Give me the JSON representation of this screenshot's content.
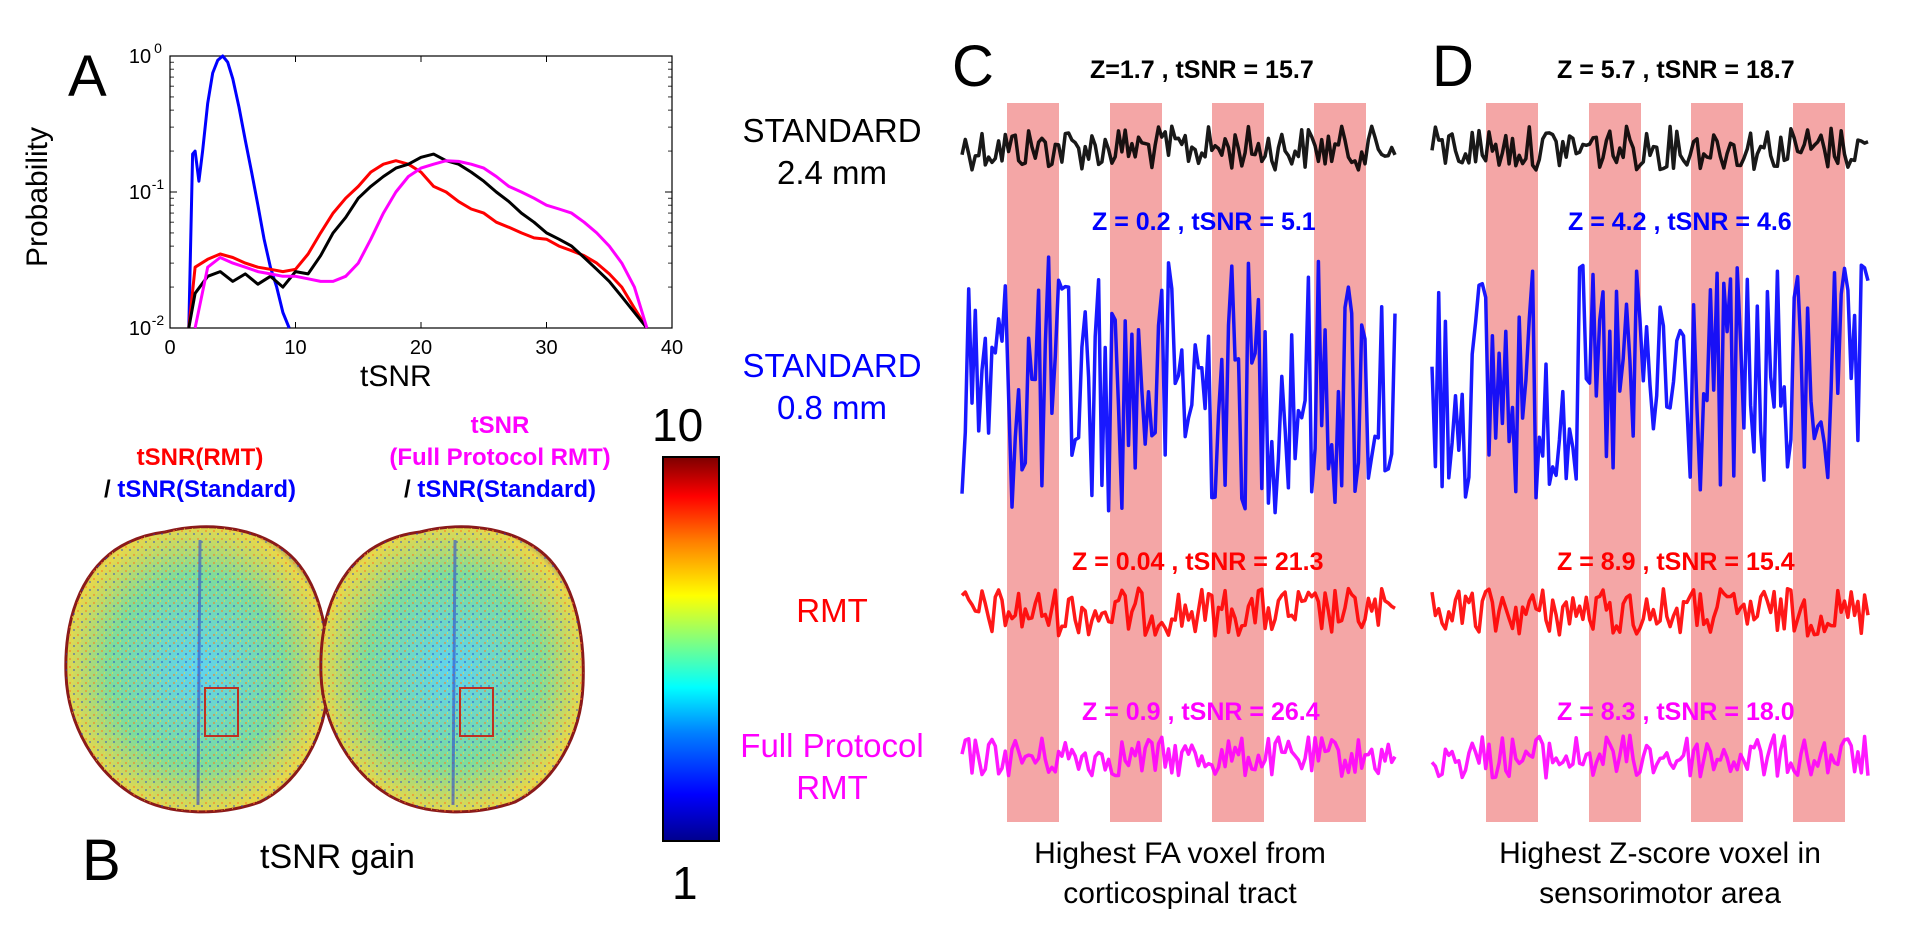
{
  "panels": {
    "A": "A",
    "B": "B",
    "C": "C",
    "D": "D"
  },
  "chart_data": {
    "type": "line",
    "xlabel": "tSNR",
    "ylabel": "Probability",
    "xlim": [
      0,
      40
    ],
    "ylim": [
      0.01,
      1
    ],
    "yscale": "log",
    "xticks": [
      "0",
      "10",
      "20",
      "30",
      "40"
    ],
    "series": [
      {
        "color": "#0000ff",
        "x": [
          1.5,
          1.8,
          2.0,
          2.3,
          2.6,
          3.0,
          3.4,
          3.8,
          4.2,
          4.6,
          5.0,
          5.5,
          6.0,
          6.5,
          7.0,
          7.5,
          8.0,
          8.5,
          9.0,
          9.5
        ],
        "values": [
          0.01,
          0.19,
          0.2,
          0.12,
          0.2,
          0.45,
          0.75,
          0.93,
          1.0,
          0.9,
          0.68,
          0.42,
          0.24,
          0.14,
          0.08,
          0.045,
          0.028,
          0.02,
          0.013,
          0.01
        ]
      },
      {
        "color": "#ff0000",
        "x": [
          1.5,
          2,
          3,
          4,
          5,
          6,
          7,
          8,
          9,
          10,
          11,
          12,
          13,
          14,
          15,
          16,
          17,
          18,
          19,
          20,
          21,
          22,
          23,
          24,
          25,
          26,
          27,
          28,
          29,
          30,
          31,
          32,
          33,
          34,
          35,
          36,
          37,
          38
        ],
        "values": [
          0.01,
          0.028,
          0.032,
          0.035,
          0.033,
          0.03,
          0.028,
          0.027,
          0.026,
          0.027,
          0.035,
          0.05,
          0.07,
          0.09,
          0.11,
          0.14,
          0.16,
          0.17,
          0.16,
          0.14,
          0.11,
          0.1,
          0.085,
          0.075,
          0.07,
          0.06,
          0.055,
          0.05,
          0.046,
          0.045,
          0.04,
          0.037,
          0.034,
          0.03,
          0.025,
          0.02,
          0.014,
          0.01
        ]
      },
      {
        "color": "#000000",
        "x": [
          1.5,
          2,
          3,
          4,
          5,
          6,
          7,
          8,
          9,
          10,
          11,
          12,
          13,
          14,
          15,
          16,
          17,
          18,
          19,
          20,
          21,
          22,
          23,
          24,
          25,
          26,
          27,
          28,
          29,
          30,
          31,
          32,
          33,
          34,
          35,
          36,
          37,
          38
        ],
        "values": [
          0.01,
          0.018,
          0.024,
          0.026,
          0.022,
          0.025,
          0.021,
          0.024,
          0.02,
          0.026,
          0.025,
          0.034,
          0.05,
          0.065,
          0.09,
          0.11,
          0.13,
          0.15,
          0.16,
          0.18,
          0.19,
          0.17,
          0.16,
          0.14,
          0.12,
          0.1,
          0.085,
          0.07,
          0.06,
          0.05,
          0.045,
          0.04,
          0.033,
          0.027,
          0.022,
          0.017,
          0.013,
          0.01
        ]
      },
      {
        "color": "#ff00ff",
        "x": [
          2,
          3,
          4,
          5,
          6,
          7,
          8,
          9,
          10,
          11,
          12,
          13,
          14,
          15,
          16,
          17,
          18,
          19,
          20,
          21,
          22,
          23,
          24,
          25,
          26,
          27,
          28,
          29,
          30,
          31,
          32,
          33,
          34,
          35,
          36,
          37,
          38
        ],
        "values": [
          0.01,
          0.028,
          0.033,
          0.03,
          0.028,
          0.026,
          0.025,
          0.024,
          0.024,
          0.023,
          0.022,
          0.022,
          0.024,
          0.03,
          0.045,
          0.07,
          0.1,
          0.13,
          0.15,
          0.16,
          0.17,
          0.168,
          0.16,
          0.15,
          0.13,
          0.11,
          0.1,
          0.09,
          0.08,
          0.075,
          0.07,
          0.06,
          0.05,
          0.04,
          0.03,
          0.02,
          0.01
        ]
      }
    ]
  },
  "panelB": {
    "ratio1_line1": "tSNR(RMT)",
    "ratio1_slash": "/ ",
    "ratio1_line2": "tSNR(Standard)",
    "ratio2_line1": "tSNR",
    "ratio2_line2": "(Full Protocol RMT)",
    "ratio2_slash": "/ ",
    "ratio2_line3": "tSNR(Standard)",
    "caption": "tSNR gain",
    "colorbar_max": "10",
    "colorbar_min": "1"
  },
  "row_labels": {
    "standard24_l1": "STANDARD",
    "standard24_l2": "2.4 mm",
    "standard08_l1": "STANDARD",
    "standard08_l2": "0.8 mm",
    "rmt": "RMT",
    "full_l1": "Full Protocol",
    "full_l2": "RMT"
  },
  "panelC": {
    "ann_black": "Z=1.7 , tSNR = 15.7",
    "ann_blue": "Z = 0.2 , tSNR = 5.1",
    "ann_red": "Z = 0.04 , tSNR = 21.3",
    "ann_magenta": "Z = 0.9 , tSNR = 26.4",
    "caption_l1": "Highest FA voxel from",
    "caption_l2": "corticospinal tract"
  },
  "panelD": {
    "ann_black": "Z = 5.7 , tSNR = 18.7",
    "ann_blue": "Z = 4.2 , tSNR = 4.6",
    "ann_red": "Z = 8.9 , tSNR = 15.4",
    "ann_magenta": "Z = 8.3 , tSNR = 18.0",
    "caption_l1": "Highest Z-score voxel in",
    "caption_l2": "sensorimotor area"
  },
  "colors": {
    "black": "#000000",
    "blue": "#0000ff",
    "red": "#ff0000",
    "magenta": "#ff00ff",
    "block": "#f4a6a6"
  }
}
